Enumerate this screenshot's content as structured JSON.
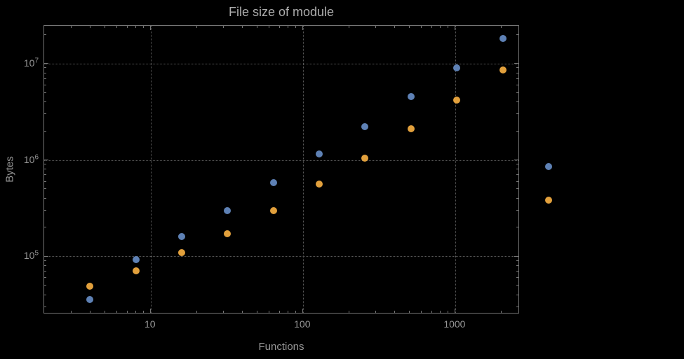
{
  "chart_data": {
    "type": "scatter",
    "title": "File size of module",
    "xlabel": "Functions",
    "ylabel": "Bytes",
    "x_scale": "log",
    "y_scale": "log",
    "xlim": [
      2,
      2600
    ],
    "ylim": [
      26000,
      24500000
    ],
    "grid": "dotted lines at decade ticks, both axes",
    "legend": "none",
    "frame": true,
    "x_ticks": [
      {
        "value": 10,
        "label": "10"
      },
      {
        "value": 100,
        "label": "100"
      },
      {
        "value": 1000,
        "label": "1000"
      }
    ],
    "y_ticks": [
      {
        "value": 100000,
        "base": "10",
        "exp": "5"
      },
      {
        "value": 1000000,
        "base": "10",
        "exp": "6"
      },
      {
        "value": 10000000,
        "base": "10",
        "exp": "7"
      }
    ],
    "series": [
      {
        "name": "blue",
        "color": "#5E81B5",
        "x": [
          4,
          8,
          16,
          32,
          64,
          128,
          256,
          512,
          1024,
          2048,
          4096
        ],
        "y": [
          36000,
          92000,
          160000,
          300000,
          580000,
          1150000,
          2200000,
          4500000,
          9000000,
          18000000,
          860000
        ]
      },
      {
        "name": "orange",
        "color": "#E2A03C",
        "x": [
          4,
          8,
          16,
          32,
          64,
          128,
          256,
          512,
          1024,
          2048,
          4096
        ],
        "y": [
          49000,
          71000,
          110000,
          172000,
          300000,
          560000,
          1050000,
          2100000,
          4200000,
          8500000,
          380000
        ]
      }
    ]
  },
  "colors": {
    "background": "#000000",
    "text": "#979797",
    "title_text": "#adadad",
    "frame": "#767676",
    "gridline": "#585858",
    "series_blue": "#5E81B5",
    "series_orange": "#E2A03C"
  }
}
